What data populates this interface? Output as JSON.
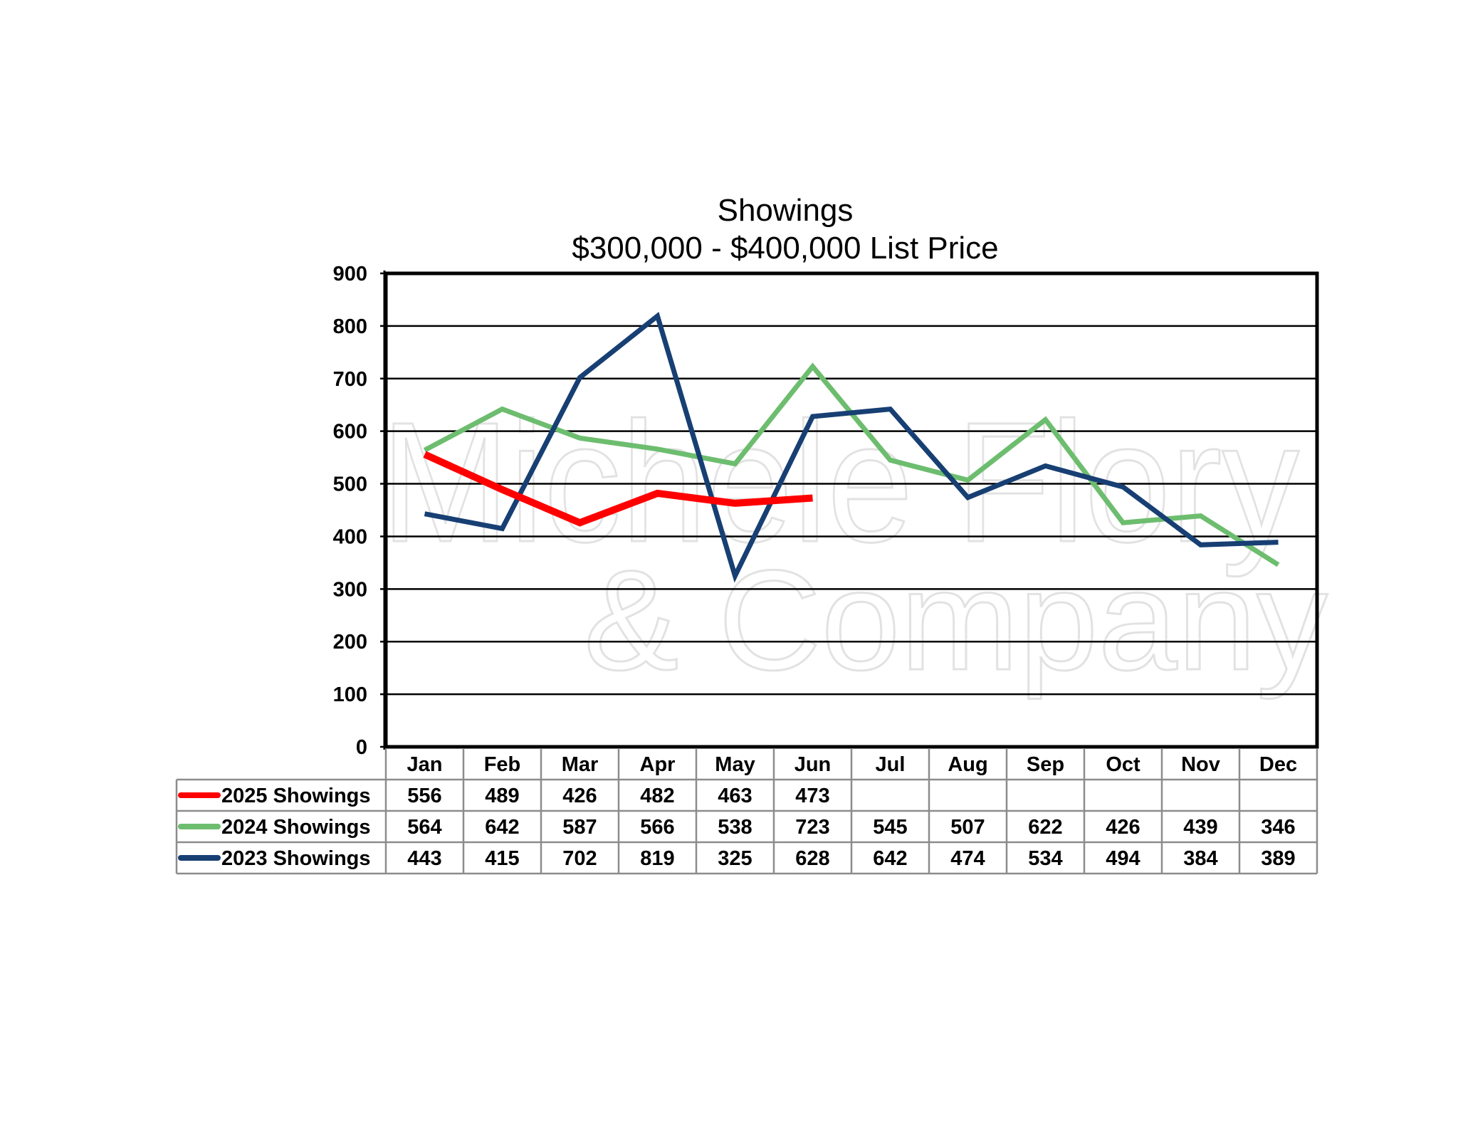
{
  "chart_data": {
    "type": "line",
    "title": "Showings",
    "subtitle": "$300,000 - $400,000 List Price",
    "categories": [
      "Jan",
      "Feb",
      "Mar",
      "Apr",
      "May",
      "Jun",
      "Jul",
      "Aug",
      "Sep",
      "Oct",
      "Nov",
      "Dec"
    ],
    "ylim": [
      0,
      900
    ],
    "yticks": [
      "0",
      "100",
      "200",
      "300",
      "400",
      "500",
      "600",
      "700",
      "800",
      "900"
    ],
    "grid": true,
    "legend_placement": "bottom data table",
    "series": [
      {
        "name": "2025 Showings",
        "color": "#ff0000",
        "values": [
          556,
          489,
          426,
          482,
          463,
          473,
          null,
          null,
          null,
          null,
          null,
          null
        ]
      },
      {
        "name": "2024 Showings",
        "color": "#6dbd6f",
        "values": [
          564,
          642,
          587,
          566,
          538,
          723,
          545,
          507,
          622,
          426,
          439,
          346
        ]
      },
      {
        "name": "2023 Showings",
        "color": "#173f73",
        "values": [
          443,
          415,
          702,
          819,
          325,
          628,
          642,
          474,
          534,
          494,
          384,
          389
        ]
      }
    ],
    "watermark": "Michele Flory & Company"
  }
}
